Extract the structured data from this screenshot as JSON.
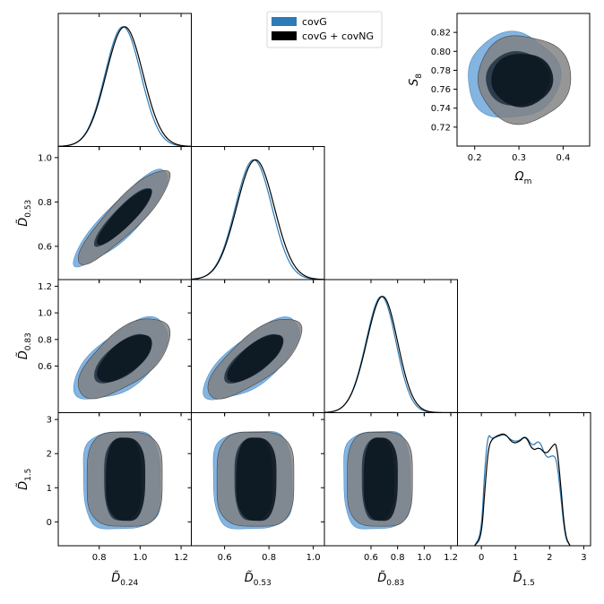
{
  "chart_data": {
    "type": "triangle-corner-plot",
    "legend": {
      "placement": "top-center",
      "entries": [
        {
          "label": "covG",
          "color": "#2c7bb6"
        },
        {
          "label": "covG + covNG",
          "color": "#000000"
        }
      ]
    },
    "colors": {
      "covG": "#5b9bd5",
      "covNG_outer": "#7f7f7f",
      "covNG_inner": "#0b1620"
    },
    "params": [
      {
        "name": "D_024",
        "label": "D̃",
        "sub": "0.24",
        "range": [
          0.6,
          1.25
        ],
        "ticks": [
          0.8,
          1.0,
          1.2
        ],
        "tick_labels": [
          "0.8",
          "1.0",
          "1.2"
        ],
        "mean": 0.92,
        "sigma": 0.09
      },
      {
        "name": "D_053",
        "label": "D̃",
        "sub": "0.53",
        "range": [
          0.45,
          1.05
        ],
        "ticks": [
          0.6,
          0.8,
          1.0
        ],
        "tick_labels": [
          "0.6",
          "0.8",
          "1.0"
        ],
        "mean": 0.735,
        "sigma": 0.085
      },
      {
        "name": "D_083",
        "label": "D̃",
        "sub": "0.83",
        "range": [
          0.25,
          1.25
        ],
        "ticks": [
          0.6,
          0.8,
          1.0,
          1.2
        ],
        "tick_labels": [
          "0.6",
          "0.8",
          "1.0",
          "1.2"
        ],
        "mean": 0.66,
        "sigma": 0.12
      },
      {
        "name": "D_15",
        "label": "D̃",
        "sub": "1.5",
        "range": [
          -0.7,
          3.2
        ],
        "ticks": [
          0,
          1,
          2,
          3
        ],
        "tick_labels": [
          "0",
          "1",
          "2",
          "3"
        ],
        "mean": 1.25,
        "sigma": 0.9
      }
    ],
    "pair_correlations": {
      "0-1": 0.88,
      "0-2": 0.62,
      "1-2": 0.72,
      "0-3": 0.0,
      "1-3": 0.0,
      "2-3": 0.0
    },
    "marginal_D15": {
      "x": [
        -0.2,
        0.0,
        0.1,
        0.2,
        0.3,
        0.5,
        0.7,
        0.9,
        1.1,
        1.3,
        1.5,
        1.7,
        1.9,
        2.1,
        2.2,
        2.3,
        2.45,
        2.6
      ],
      "covG": [
        0.0,
        0.3,
        2.0,
        2.85,
        2.7,
        2.78,
        2.82,
        2.65,
        2.65,
        2.8,
        2.5,
        2.7,
        2.2,
        2.3,
        2.2,
        1.5,
        0.2,
        0.0
      ],
      "covNG": [
        0.0,
        0.2,
        1.4,
        2.45,
        2.7,
        2.8,
        2.85,
        2.6,
        2.62,
        2.8,
        2.4,
        2.5,
        2.3,
        2.55,
        2.6,
        1.8,
        0.25,
        0.0
      ]
    },
    "inset": {
      "xlabel": "Ω",
      "xlabel_sub": "m",
      "ylabel": "S",
      "ylabel_sub": "8",
      "xlim": [
        0.16,
        0.46
      ],
      "ylim": [
        0.7,
        0.84
      ],
      "xticks": [
        0.2,
        0.3,
        0.4
      ],
      "xtick_labels": [
        "0.2",
        "0.3",
        "0.4"
      ],
      "yticks": [
        0.72,
        0.74,
        0.76,
        0.78,
        0.8,
        0.82
      ],
      "ytick_labels": [
        "0.72",
        "0.74",
        "0.76",
        "0.78",
        "0.80",
        "0.82"
      ],
      "center": [
        0.305,
        0.77
      ],
      "sigma": [
        0.05,
        0.022
      ]
    }
  }
}
